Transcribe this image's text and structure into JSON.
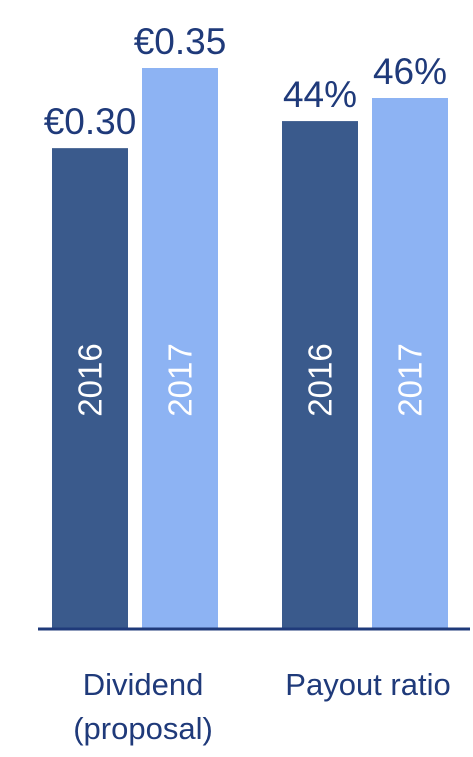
{
  "colors": {
    "dark": "#3a5a8c",
    "light": "#8db3f3",
    "text": "#1f3a7a",
    "axis": "#1f3a7a"
  },
  "chart_data": {
    "type": "bar",
    "title": "",
    "xlabel": "",
    "ylabel": "",
    "grid": false,
    "legend": "none",
    "groups": [
      {
        "category_lines": [
          "Dividend",
          "(proposal)"
        ],
        "bars": [
          {
            "year": "2016",
            "value": 0.3,
            "label": "€0.30",
            "shade": "dark"
          },
          {
            "year": "2017",
            "value": 0.35,
            "label": "€0.35",
            "shade": "light"
          }
        ]
      },
      {
        "category_lines": [
          "Payout ratio"
        ],
        "bars": [
          {
            "year": "2016",
            "value": 44,
            "label": "44%",
            "shade": "dark"
          },
          {
            "year": "2017",
            "value": 46,
            "label": "46%",
            "shade": "light"
          }
        ]
      }
    ]
  }
}
